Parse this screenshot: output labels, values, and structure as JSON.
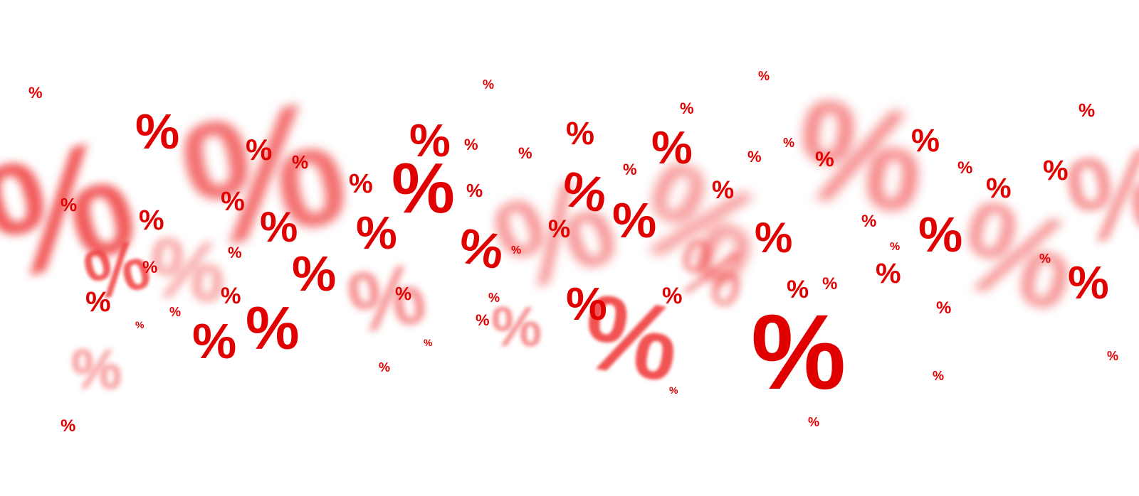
{
  "scene": {
    "background_color": "#ffffff",
    "symbol_color": "#e00000",
    "symbol_color_soft": "#f04040",
    "symbol_text": "%"
  }
}
